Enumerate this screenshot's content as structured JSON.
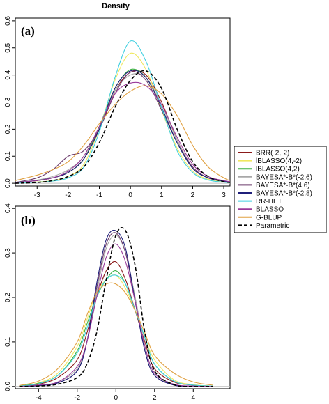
{
  "title": "Density",
  "legend": {
    "placement": "right",
    "entries": [
      {
        "label": "BRR(-2,-2)",
        "color": "#8B1A1A",
        "dashed": false
      },
      {
        "label": "lBLASSO(4,-2)",
        "color": "#F0E860",
        "dashed": false
      },
      {
        "label": "lBLASSO(4,2)",
        "color": "#3CB043",
        "dashed": false
      },
      {
        "label": "BAYESA*-B*(-2,6)",
        "color": "#A8A8A8",
        "dashed": false
      },
      {
        "label": "BAYESA*-B*(4,6)",
        "color": "#6B3A6B",
        "dashed": false
      },
      {
        "label": "BAYESA*-B*(-2,8)",
        "color": "#1F1F7A",
        "dashed": false
      },
      {
        "label": "RR-HET",
        "color": "#40D0E0",
        "dashed": false
      },
      {
        "label": "BLASSO",
        "color": "#9A3A9A",
        "dashed": false
      },
      {
        "label": "G-BLUP",
        "color": "#E0A040",
        "dashed": false
      },
      {
        "label": "Parametric",
        "color": "#000000",
        "dashed": true
      }
    ]
  },
  "chart_data": [
    {
      "type": "line",
      "panel": "(a)",
      "xlim": [
        -3.7,
        3.2
      ],
      "ylim": [
        -0.01,
        0.61
      ],
      "x_ticks": [
        -3,
        -2,
        -1,
        0,
        1,
        2,
        3
      ],
      "y_ticks": [
        0.0,
        0.1,
        0.2,
        0.3,
        0.4,
        0.5,
        0.6
      ],
      "hline": 0,
      "series": [
        {
          "name": "BRR(-2,-2)",
          "x": [
            -3.7,
            -3,
            -2.5,
            -2,
            -1.5,
            -1,
            -0.5,
            0,
            0.5,
            1,
            1.5,
            2,
            2.5,
            3,
            3.2
          ],
          "y": [
            0.002,
            0.01,
            0.02,
            0.04,
            0.09,
            0.2,
            0.34,
            0.41,
            0.4,
            0.3,
            0.16,
            0.06,
            0.02,
            0.008,
            0.005
          ]
        },
        {
          "name": "lBLASSO(4,-2)",
          "x": [
            -3.7,
            -3,
            -2.5,
            -2,
            -1.5,
            -1,
            -0.5,
            0,
            0.5,
            1,
            1.5,
            2,
            2.5,
            3,
            3.2
          ],
          "y": [
            0.001,
            0.005,
            0.01,
            0.025,
            0.07,
            0.2,
            0.38,
            0.48,
            0.42,
            0.27,
            0.13,
            0.045,
            0.015,
            0.005,
            0.003
          ]
        },
        {
          "name": "lBLASSO(4,2)",
          "x": [
            -3.7,
            -3,
            -2.5,
            -2,
            -1.5,
            -1,
            -0.5,
            0,
            0.5,
            1,
            1.5,
            2,
            2.5,
            3,
            3.2
          ],
          "y": [
            0.002,
            0.01,
            0.02,
            0.04,
            0.09,
            0.21,
            0.35,
            0.42,
            0.39,
            0.28,
            0.15,
            0.055,
            0.02,
            0.008,
            0.005
          ]
        },
        {
          "name": "BAYESA*-B*(-2,6)",
          "x": [
            -3.7,
            -3,
            -2.5,
            -2,
            -1.5,
            -1,
            -0.5,
            0,
            0.5,
            1,
            1.5,
            2,
            2.5,
            3,
            3.2
          ],
          "y": [
            0.002,
            0.012,
            0.025,
            0.05,
            0.1,
            0.21,
            0.34,
            0.4,
            0.39,
            0.29,
            0.16,
            0.06,
            0.02,
            0.008,
            0.005
          ]
        },
        {
          "name": "BAYESA*-B*(4,6)",
          "x": [
            -3.7,
            -3,
            -2.5,
            -2,
            -1.5,
            -1,
            -0.5,
            0,
            0.5,
            1,
            1.5,
            2,
            2.5,
            3,
            3.2
          ],
          "y": [
            0.003,
            0.02,
            0.05,
            0.1,
            0.12,
            0.2,
            0.33,
            0.41,
            0.38,
            0.27,
            0.15,
            0.06,
            0.02,
            0.008,
            0.005
          ]
        },
        {
          "name": "BAYESA*-B*(-2,8)",
          "x": [
            -3.7,
            -3,
            -2.5,
            -2,
            -1.5,
            -1,
            -0.5,
            0,
            0.5,
            1,
            1.5,
            2,
            2.5,
            3,
            3.2
          ],
          "y": [
            0.002,
            0.01,
            0.02,
            0.04,
            0.09,
            0.2,
            0.35,
            0.415,
            0.39,
            0.28,
            0.15,
            0.055,
            0.02,
            0.008,
            0.005
          ]
        },
        {
          "name": "RR-HET",
          "x": [
            -3.7,
            -3,
            -2.5,
            -2,
            -1.5,
            -1,
            -0.5,
            0,
            0.5,
            1,
            1.5,
            2,
            2.5,
            3,
            3.2
          ],
          "y": [
            0.001,
            0.004,
            0.008,
            0.02,
            0.06,
            0.19,
            0.39,
            0.525,
            0.45,
            0.28,
            0.12,
            0.04,
            0.012,
            0.004,
            0.002
          ]
        },
        {
          "name": "BLASSO",
          "x": [
            -3.7,
            -3,
            -2.5,
            -2,
            -1.5,
            -1,
            -0.5,
            0,
            0.5,
            1,
            1.5,
            2,
            2.5,
            3,
            3.2
          ],
          "y": [
            0.002,
            0.01,
            0.02,
            0.045,
            0.1,
            0.21,
            0.33,
            0.37,
            0.36,
            0.29,
            0.17,
            0.07,
            0.025,
            0.01,
            0.006
          ]
        },
        {
          "name": "G-BLUP",
          "x": [
            -3.7,
            -3,
            -2.5,
            -2,
            -1.5,
            -1,
            -0.5,
            0,
            0.5,
            1,
            1.5,
            2,
            2.5,
            3,
            3.2
          ],
          "y": [
            0.01,
            0.03,
            0.05,
            0.08,
            0.14,
            0.22,
            0.29,
            0.34,
            0.36,
            0.33,
            0.25,
            0.14,
            0.06,
            0.02,
            0.01
          ]
        },
        {
          "name": "Parametric",
          "x": [
            -3.7,
            -3,
            -2.5,
            -2,
            -1.5,
            -1,
            -0.5,
            0,
            0.5,
            1,
            1.5,
            2,
            2.5,
            3,
            3.2
          ],
          "y": [
            0.0,
            0.003,
            0.01,
            0.025,
            0.06,
            0.15,
            0.28,
            0.38,
            0.415,
            0.35,
            0.2,
            0.08,
            0.025,
            0.006,
            0.003
          ]
        }
      ]
    },
    {
      "type": "line",
      "panel": "(b)",
      "xlim": [
        -5.2,
        5.9
      ],
      "ylim": [
        -0.005,
        0.405
      ],
      "x_ticks": [
        -4,
        -2,
        0,
        2,
        4
      ],
      "y_ticks": [
        0.0,
        0.1,
        0.2,
        0.3,
        0.4
      ],
      "hline": 0,
      "series": [
        {
          "name": "BRR(-2,-2)",
          "x": [
            -5,
            -4,
            -3,
            -2,
            -1.5,
            -1,
            -0.5,
            0,
            0.5,
            1,
            1.5,
            2,
            3,
            4,
            5
          ],
          "y": [
            0.001,
            0.005,
            0.02,
            0.06,
            0.12,
            0.2,
            0.26,
            0.28,
            0.24,
            0.17,
            0.1,
            0.04,
            0.01,
            0.003,
            0.001
          ]
        },
        {
          "name": "lBLASSO(4,-2)",
          "x": [
            -5,
            -4,
            -3,
            -2,
            -1.5,
            -1,
            -0.5,
            0,
            0.5,
            1,
            1.5,
            2,
            3,
            4,
            5
          ],
          "y": [
            0.001,
            0.008,
            0.03,
            0.09,
            0.15,
            0.21,
            0.24,
            0.25,
            0.22,
            0.17,
            0.11,
            0.06,
            0.015,
            0.004,
            0.001
          ]
        },
        {
          "name": "lBLASSO(4,2)",
          "x": [
            -5,
            -4,
            -3,
            -2,
            -1.5,
            -1,
            -0.5,
            0,
            0.5,
            1,
            1.5,
            2,
            3,
            4,
            5
          ],
          "y": [
            0.001,
            0.007,
            0.025,
            0.08,
            0.14,
            0.2,
            0.24,
            0.26,
            0.23,
            0.17,
            0.11,
            0.05,
            0.012,
            0.003,
            0.001
          ]
        },
        {
          "name": "BAYESA*-B*(-2,6)",
          "x": [
            -5,
            -4,
            -3,
            -2,
            -1.5,
            -1,
            -0.5,
            0,
            0.5,
            1,
            1.5,
            2,
            3,
            4,
            5
          ],
          "y": [
            0.0,
            0.002,
            0.01,
            0.04,
            0.1,
            0.21,
            0.31,
            0.34,
            0.3,
            0.2,
            0.09,
            0.03,
            0.004,
            0.001,
            0.0
          ]
        },
        {
          "name": "BAYESA*-B*(4,6)",
          "x": [
            -5,
            -4,
            -3,
            -2,
            -1.5,
            -1,
            -0.5,
            0,
            0.5,
            1,
            1.5,
            2,
            3,
            4,
            5
          ],
          "y": [
            0.0,
            0.002,
            0.008,
            0.035,
            0.1,
            0.22,
            0.32,
            0.345,
            0.3,
            0.19,
            0.08,
            0.025,
            0.003,
            0.001,
            0.0
          ]
        },
        {
          "name": "BAYESA*-B*(-2,8)",
          "x": [
            -5,
            -4,
            -3,
            -2,
            -1.5,
            -1,
            -0.5,
            0,
            0.5,
            1,
            1.5,
            2,
            3,
            4,
            5
          ],
          "y": [
            0.0,
            0.002,
            0.008,
            0.035,
            0.1,
            0.23,
            0.33,
            0.35,
            0.31,
            0.19,
            0.08,
            0.025,
            0.003,
            0.001,
            0.0
          ]
        },
        {
          "name": "RR-HET",
          "x": [
            -5,
            -4,
            -3,
            -2,
            -1.5,
            -1,
            -0.5,
            0,
            0.5,
            1,
            1.5,
            2,
            3,
            4,
            5
          ],
          "y": [
            0.001,
            0.006,
            0.025,
            0.075,
            0.13,
            0.2,
            0.24,
            0.25,
            0.23,
            0.17,
            0.11,
            0.05,
            0.012,
            0.003,
            0.001
          ]
        },
        {
          "name": "BLASSO",
          "x": [
            -5,
            -4,
            -3,
            -2,
            -1.5,
            -1,
            -0.5,
            0,
            0.5,
            1,
            1.5,
            2,
            3,
            4,
            5
          ],
          "y": [
            0.0,
            0.003,
            0.01,
            0.045,
            0.1,
            0.2,
            0.29,
            0.32,
            0.28,
            0.19,
            0.09,
            0.03,
            0.005,
            0.001,
            0.0
          ]
        },
        {
          "name": "G-BLUP",
          "x": [
            -5,
            -4,
            -3,
            -2,
            -1.5,
            -1,
            -0.5,
            0,
            0.5,
            1,
            1.5,
            2,
            3,
            4,
            5
          ],
          "y": [
            0.002,
            0.012,
            0.04,
            0.1,
            0.16,
            0.21,
            0.23,
            0.23,
            0.21,
            0.17,
            0.12,
            0.07,
            0.03,
            0.01,
            0.003
          ]
        },
        {
          "name": "Parametric",
          "x": [
            -5,
            -4,
            -3,
            -2,
            -1.5,
            -1,
            -0.5,
            0,
            0.5,
            1,
            1.5,
            2,
            3,
            4,
            5
          ],
          "y": [
            0.0,
            0.001,
            0.005,
            0.02,
            0.05,
            0.12,
            0.24,
            0.34,
            0.35,
            0.27,
            0.12,
            0.035,
            0.004,
            0.0,
            0.0
          ]
        }
      ]
    }
  ]
}
